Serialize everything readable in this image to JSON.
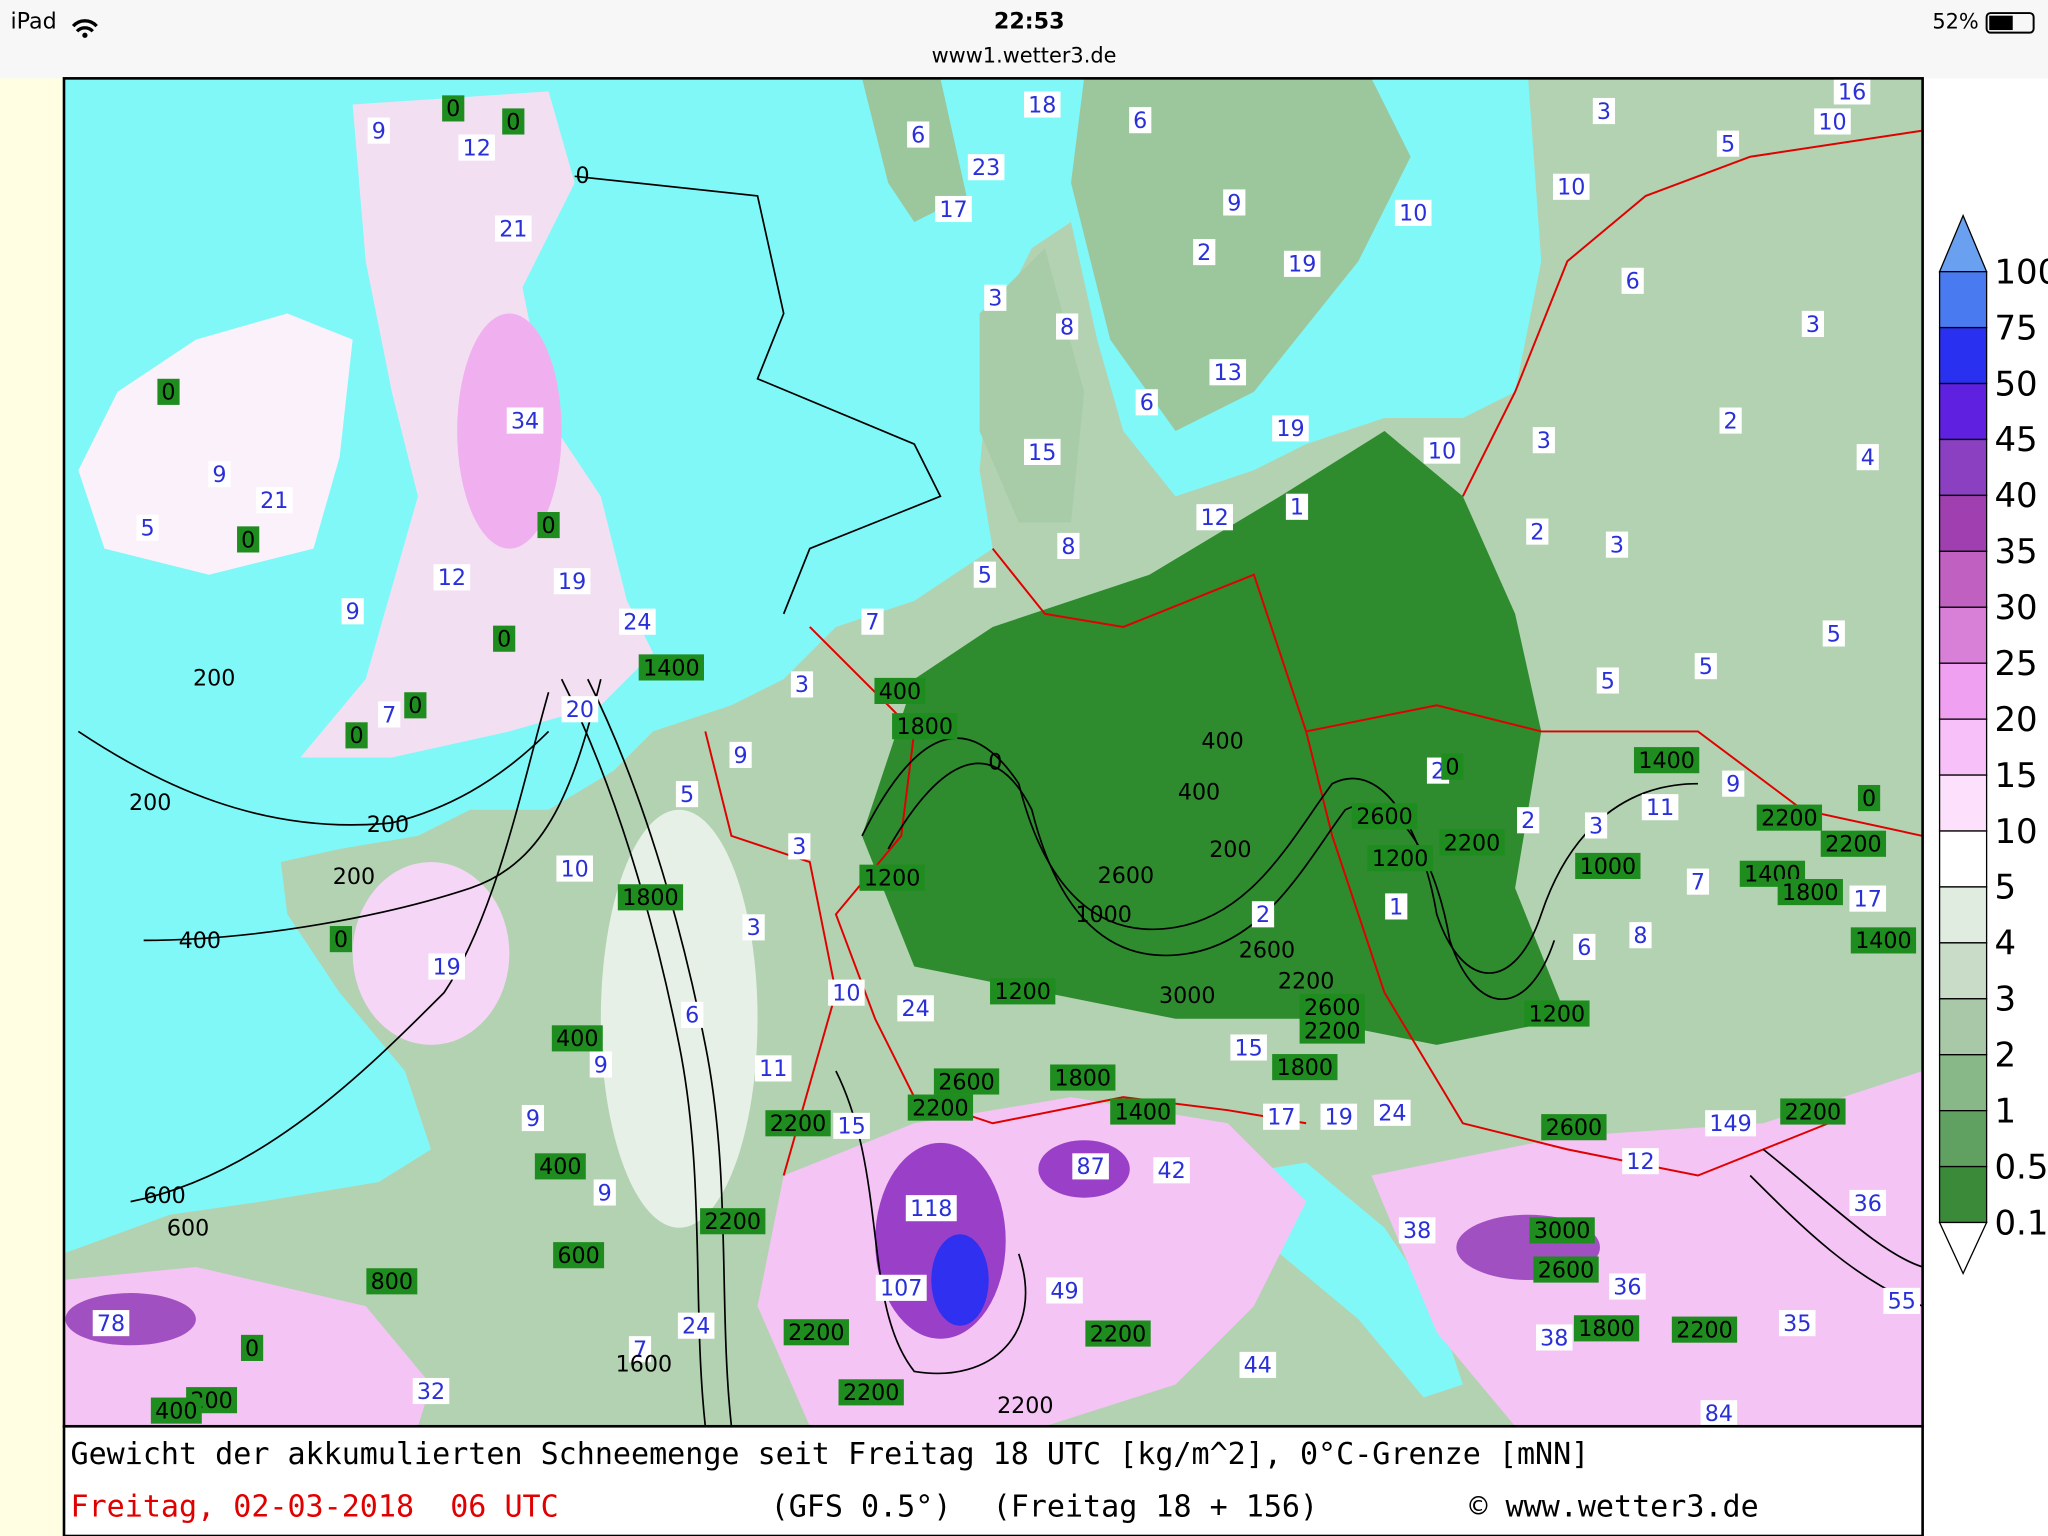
{
  "status_bar": {
    "device": "iPad",
    "time": "22:53",
    "url": "www1.wetter3.de",
    "battery": "52%"
  },
  "map": {
    "snow_labels": [
      "9",
      "12",
      "21",
      "34",
      "9",
      "21",
      "5",
      "12",
      "19",
      "9",
      "24",
      "7",
      "20",
      "9",
      "5",
      "3",
      "10",
      "3",
      "19",
      "10",
      "6",
      "9",
      "11",
      "9",
      "9",
      "15",
      "118",
      "107",
      "87",
      "42",
      "49",
      "44",
      "24",
      "7",
      "32",
      "78",
      "18",
      "6",
      "23",
      "17",
      "6",
      "9",
      "2",
      "19",
      "10",
      "3",
      "8",
      "13",
      "6",
      "19",
      "15",
      "12",
      "1",
      "8",
      "5",
      "7",
      "3",
      "10",
      "3",
      "2",
      "3",
      "6",
      "3",
      "5",
      "16",
      "10",
      "10",
      "3",
      "2",
      "4",
      "5",
      "5",
      "5",
      "2",
      "2",
      "3",
      "11",
      "9",
      "7",
      "17",
      "8",
      "6",
      "1",
      "2",
      "24",
      "15",
      "17",
      "19",
      "24",
      "149",
      "12",
      "38",
      "36",
      "38",
      "35",
      "36",
      "55",
      "84"
    ],
    "contour_labels": [
      "0",
      "0",
      "0",
      "0",
      "0",
      "0",
      "0",
      "0",
      "0",
      "1400",
      "400",
      "1800",
      "1200",
      "1800",
      "400",
      "400",
      "600",
      "800",
      "2200",
      "2200",
      "2600",
      "2200",
      "1800",
      "1400",
      "1200",
      "2200",
      "2200",
      "2200",
      "200",
      "400",
      "0",
      "2600",
      "3000",
      "2600",
      "1800",
      "2200",
      "1800",
      "2200",
      "1400",
      "1200",
      "1400",
      "1800",
      "2200",
      "2200",
      "0",
      "1000",
      "1400",
      "0",
      "2200",
      "2600",
      "1200",
      "2600",
      "2200"
    ],
    "isoline_labels": [
      "0",
      "200",
      "200",
      "200",
      "400",
      "600",
      "600",
      "200",
      "1600",
      "0",
      "400",
      "400",
      "200",
      "2600",
      "1000",
      "3000",
      "2600",
      "2200",
      "2200"
    ]
  },
  "legend": {
    "labels": [
      "100",
      "75",
      "50",
      "45",
      "40",
      "35",
      "30",
      "25",
      "20",
      "15",
      "10",
      "5",
      "4",
      "3",
      "2",
      "1",
      "0.5",
      "0.1"
    ]
  },
  "caption": {
    "line1": "Gewicht der akkumulierten Schneemenge seit Freitag 18 UTC [kg/m^2], 0°C-Grenze [mNN]",
    "date": "Freitag, 02-03-2018  06 UTC",
    "model": "(GFS 0.5°)",
    "run": "(Freitag 18 + 156)",
    "copyright": "© www.wetter3.de"
  }
}
